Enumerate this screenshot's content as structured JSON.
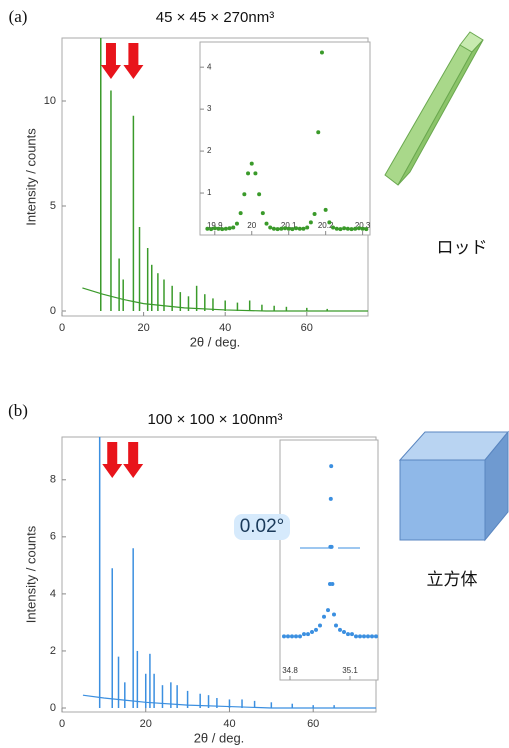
{
  "chart_data": [
    {
      "type": "stem",
      "panel_label": "(a)",
      "title": "45 × 45 × 270nm³",
      "side_label": "ロッド",
      "xlabel": "2θ / deg.",
      "ylabel": "Intensity / counts",
      "xlim": [
        0,
        75
      ],
      "ylim": [
        0,
        13
      ],
      "xticks": [
        0,
        20,
        40,
        60
      ],
      "yticks": [
        0,
        5,
        10
      ],
      "series": [
        {
          "type": "line",
          "color": "#3a9a2a",
          "x": [
            5,
            10,
            15,
            20,
            30,
            40,
            50,
            75
          ],
          "values": [
            1.1,
            0.8,
            0.55,
            0.35,
            0.15,
            0.05,
            0,
            0
          ]
        },
        {
          "type": "stem",
          "color": "#3a9a2a",
          "x": [
            9.5,
            12,
            14,
            15,
            17.5,
            19,
            21,
            22,
            23.5,
            25,
            27,
            29,
            31,
            33,
            35,
            37,
            40,
            43,
            46,
            49,
            52,
            55,
            60,
            65
          ],
          "values": [
            13,
            10.5,
            2.5,
            1.5,
            9.3,
            4,
            3,
            2.2,
            1.8,
            1.5,
            1.2,
            0.9,
            0.7,
            1.2,
            0.8,
            0.6,
            0.5,
            0.4,
            0.5,
            0.3,
            0.25,
            0.2,
            0.15,
            0.1
          ]
        }
      ]
    },
    {
      "type": "scatter",
      "color": "#3a9a2a",
      "xlim": [
        19.86,
        20.32
      ],
      "ylim": [
        0,
        4.6
      ],
      "xticks": [
        19.9,
        20,
        20.1,
        20.2,
        20.3
      ],
      "yticks": [
        1,
        2,
        3,
        4
      ],
      "x": [
        19.88,
        19.89,
        19.9,
        19.91,
        19.92,
        19.93,
        19.94,
        19.95,
        19.96,
        19.97,
        19.98,
        19.99,
        20,
        20.01,
        20.02,
        20.03,
        20.04,
        20.05,
        20.06,
        20.07,
        20.08,
        20.09,
        20.1,
        20.11,
        20.12,
        20.13,
        20.14,
        20.15,
        20.16,
        20.17,
        20.18,
        20.19,
        20.2,
        20.21,
        20.22,
        20.23,
        20.24,
        20.25,
        20.26,
        20.27,
        20.28,
        20.29,
        20.3,
        20.31
      ],
      "values": [
        0.15,
        0.14,
        0.16,
        0.15,
        0.14,
        0.15,
        0.16,
        0.18,
        0.27,
        0.52,
        0.97,
        1.47,
        1.7,
        1.47,
        0.97,
        0.52,
        0.27,
        0.18,
        0.15,
        0.14,
        0.15,
        0.16,
        0.15,
        0.14,
        0.16,
        0.15,
        0.15,
        0.18,
        0.3,
        0.5,
        2.45,
        4.35,
        0.6,
        0.3,
        0.18,
        0.15,
        0.14,
        0.16,
        0.15,
        0.14,
        0.15,
        0.16,
        0.15,
        0.14
      ]
    },
    {
      "type": "stem",
      "panel_label": "(b)",
      "title": "100 × 100 × 100nm³",
      "side_label": "立方体",
      "xlabel": "2θ / deg.",
      "ylabel": "Intensity / counts",
      "xlim": [
        0,
        75
      ],
      "ylim": [
        0,
        9.5
      ],
      "xticks": [
        0,
        20,
        40,
        60
      ],
      "yticks": [
        0,
        2,
        4,
        6,
        8
      ],
      "series": [
        {
          "type": "line",
          "color": "#3b8fe0",
          "x": [
            5,
            10,
            20,
            30,
            40,
            50,
            75
          ],
          "values": [
            0.45,
            0.35,
            0.2,
            0.1,
            0.05,
            0,
            0
          ]
        },
        {
          "type": "stem",
          "color": "#3b8fe0",
          "x": [
            9,
            12,
            13.5,
            15,
            17,
            18,
            20,
            21,
            22,
            24,
            26,
            27.5,
            30,
            33,
            35,
            37,
            40,
            43,
            46,
            50,
            55,
            60,
            65
          ],
          "values": [
            9.5,
            4.9,
            1.8,
            0.9,
            5.6,
            2,
            1.2,
            1.9,
            1.2,
            0.8,
            0.9,
            0.8,
            0.6,
            0.5,
            0.45,
            0.35,
            0.3,
            0.3,
            0.25,
            0.2,
            0.15,
            0.1,
            0.1
          ]
        }
      ]
    },
    {
      "type": "scatter",
      "color": "#3b8fe0",
      "annotation": "0.02°",
      "xlim": [
        34.75,
        35.24
      ],
      "ylim": [
        0,
        1.1
      ],
      "xticks": [
        34.8,
        35.1
      ],
      "x": [
        34.77,
        34.79,
        34.81,
        34.83,
        34.85,
        34.87,
        34.89,
        34.91,
        34.93,
        34.95,
        34.97,
        34.99,
        35.0,
        35.002,
        35.004,
        35.006,
        35.008,
        35.012,
        35.02,
        35.03,
        35.05,
        35.07,
        35.09,
        35.11,
        35.13,
        35.15,
        35.17,
        35.19,
        35.21,
        35.23
      ],
      "values": [
        0.2,
        0.2,
        0.2,
        0.2,
        0.2,
        0.21,
        0.21,
        0.22,
        0.23,
        0.25,
        0.29,
        0.32,
        0.44,
        0.61,
        0.83,
        0.98,
        0.61,
        0.44,
        0.3,
        0.25,
        0.23,
        0.22,
        0.21,
        0.21,
        0.2,
        0.2,
        0.2,
        0.2,
        0.2,
        0.2
      ]
    }
  ]
}
